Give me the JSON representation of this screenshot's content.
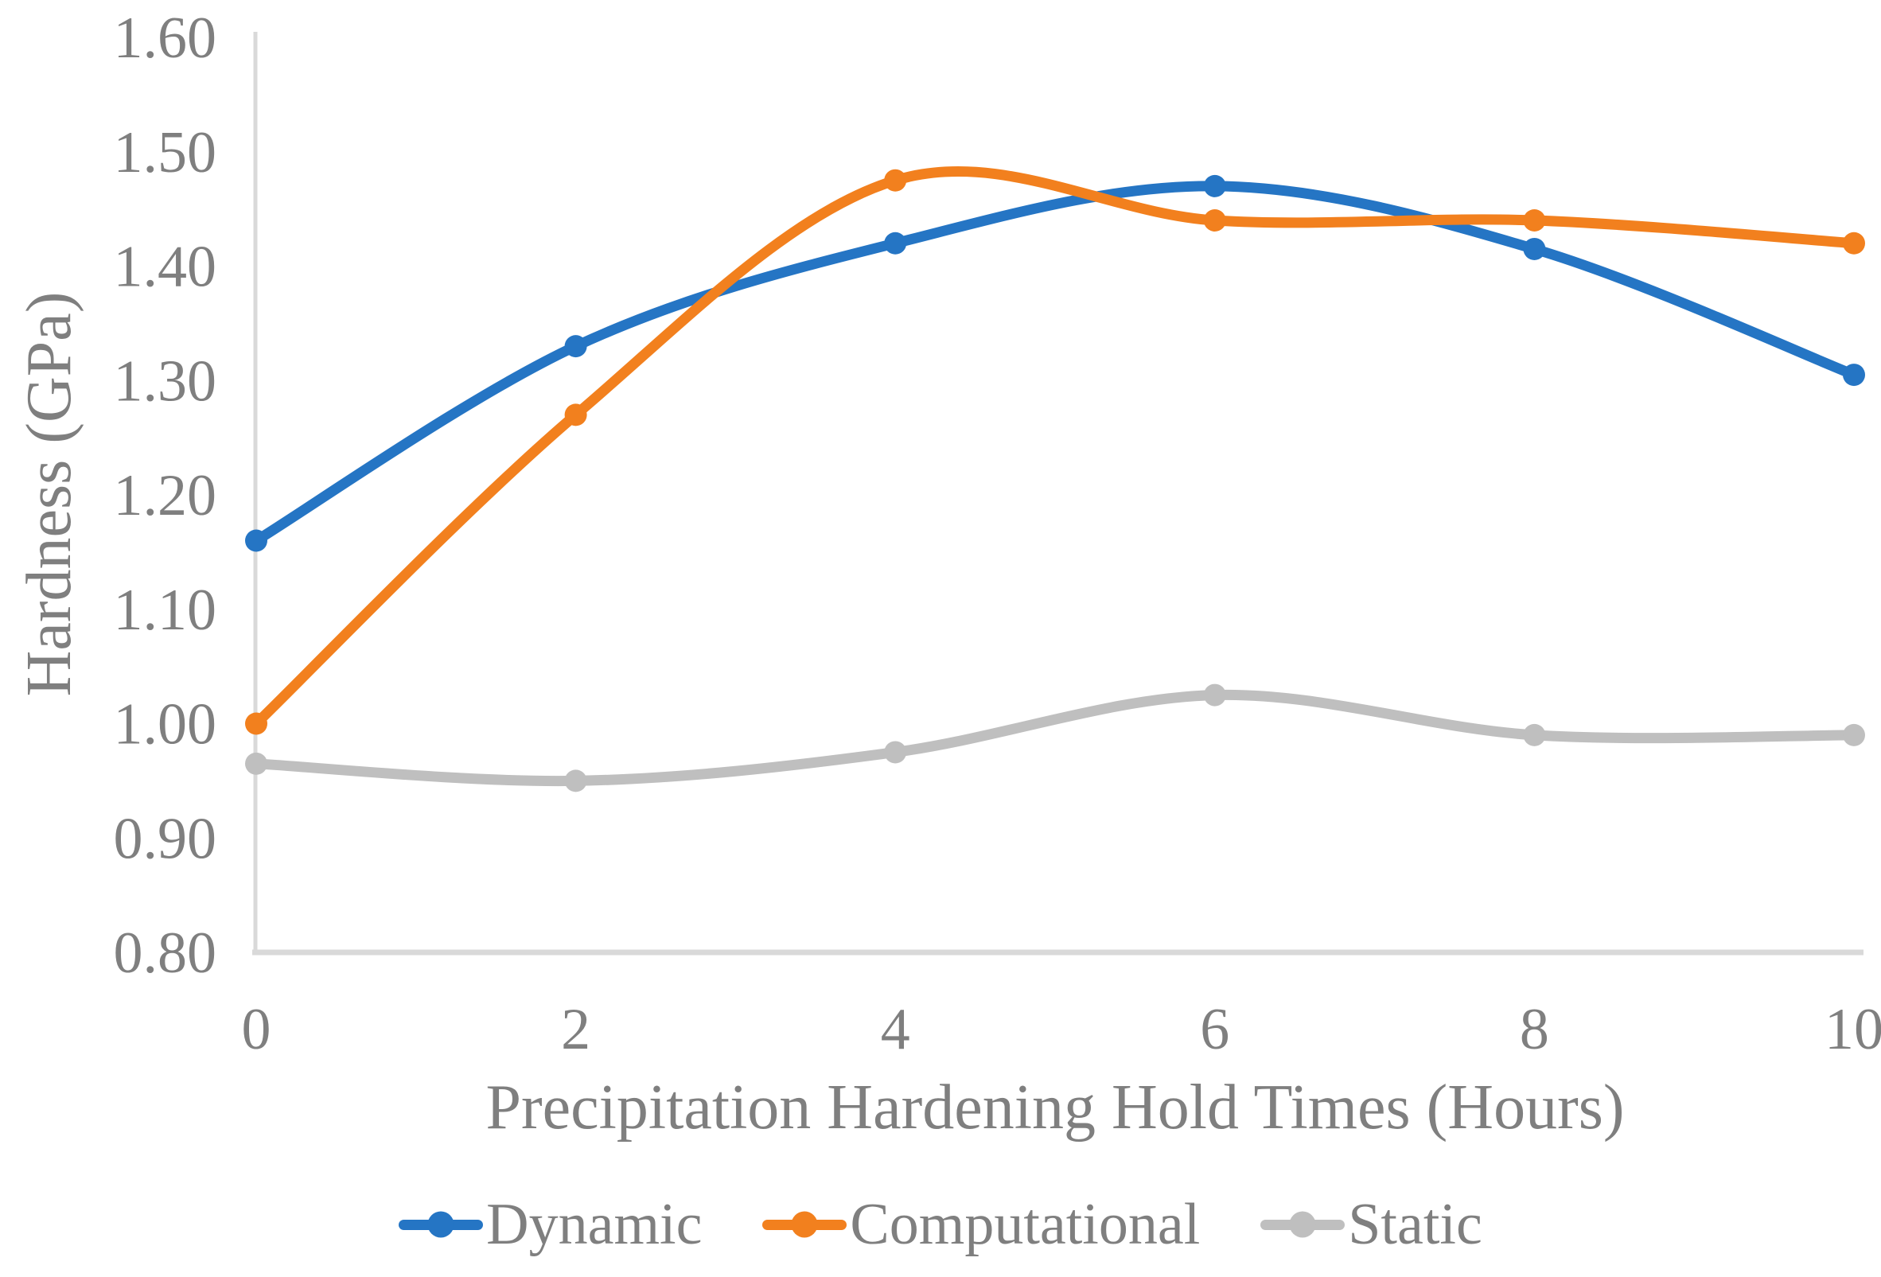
{
  "figure": {
    "background_color": "#FFFFFF",
    "text_color": "#7F7F7F",
    "axis_line_color": "#D9D9D9"
  },
  "chart_data": {
    "type": "line",
    "title": "",
    "xlabel": "Precipitation Hardening Hold Times (Hours)",
    "ylabel": "Hardness (GPa)",
    "x": [
      0,
      2,
      4,
      6,
      8,
      10
    ],
    "x_tick_labels": [
      "0",
      "2",
      "4",
      "6",
      "8",
      "10"
    ],
    "xlim": [
      0,
      10
    ],
    "ylim": [
      0.8,
      1.6
    ],
    "y_ticks": [
      1.6,
      1.5,
      1.4,
      1.3,
      1.2,
      1.1,
      1.0,
      0.9,
      0.8
    ],
    "y_tick_labels": [
      "1.60",
      "1.50",
      "1.40",
      "1.30",
      "1.20",
      "1.10",
      "1.00",
      "0.90",
      "0.80"
    ],
    "grid": false,
    "line_style": "smooth",
    "marker": "circle",
    "legend_position": "bottom",
    "series": [
      {
        "name": "Dynamic",
        "color": "#2575C4",
        "values": [
          1.16,
          1.33,
          1.42,
          1.47,
          1.415,
          1.305
        ]
      },
      {
        "name": "Computational",
        "color": "#F2801E",
        "values": [
          1.0,
          1.27,
          1.475,
          1.44,
          1.44,
          1.42
        ]
      },
      {
        "name": "Static",
        "color": "#BFBFBF",
        "values": [
          0.965,
          0.95,
          0.975,
          1.025,
          0.99,
          0.99
        ]
      }
    ]
  }
}
